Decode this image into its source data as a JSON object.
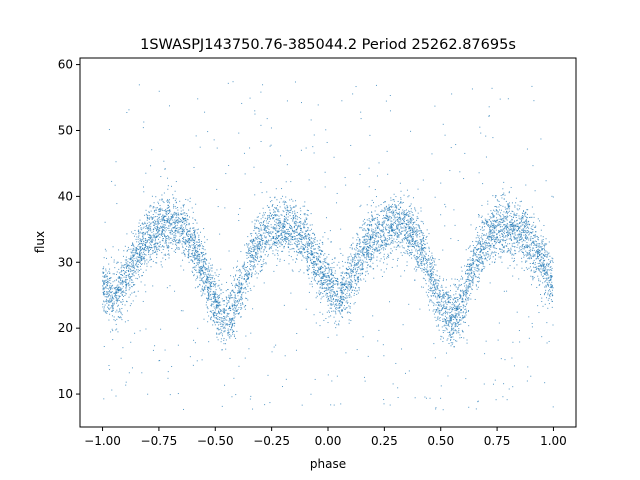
{
  "chart_data": {
    "type": "scatter",
    "title": "1SWASPJ143750.76-385044.2 Period 25262.87695s",
    "xlabel": "phase",
    "ylabel": "flux",
    "xlim": [
      -1.1,
      1.1
    ],
    "ylim": [
      5,
      61
    ],
    "x_ticks": [
      -1.0,
      -0.75,
      -0.5,
      -0.25,
      0.0,
      0.25,
      0.5,
      0.75,
      1.0
    ],
    "x_tick_labels": [
      "−1.00",
      "−0.75",
      "−0.50",
      "−0.25",
      "0.00",
      "0.25",
      "0.50",
      "0.75",
      "1.00"
    ],
    "y_ticks": [
      10,
      20,
      30,
      40,
      50,
      60
    ],
    "y_tick_labels": [
      "10",
      "20",
      "30",
      "40",
      "50",
      "60"
    ],
    "grid": false,
    "legend": "none",
    "marker_color": "#1f77b4",
    "x_range": [
      -1.0,
      1.0
    ],
    "outlier_flux_range": [
      7.5,
      57.5
    ],
    "light_curve_profile": {
      "phase": [
        0.0,
        0.05,
        0.1,
        0.15,
        0.2,
        0.25,
        0.3,
        0.35,
        0.4,
        0.45,
        0.5,
        0.55,
        0.6,
        0.65,
        0.7,
        0.75,
        0.8,
        0.85,
        0.9,
        0.95,
        1.0
      ],
      "flux": [
        27.0,
        24.5,
        27.5,
        31.0,
        33.8,
        35.2,
        35.8,
        35.2,
        33.0,
        28.5,
        23.5,
        21.0,
        24.5,
        30.0,
        33.5,
        35.0,
        35.3,
        34.8,
        33.0,
        30.0,
        27.0
      ],
      "scatter": 2.2
    }
  }
}
